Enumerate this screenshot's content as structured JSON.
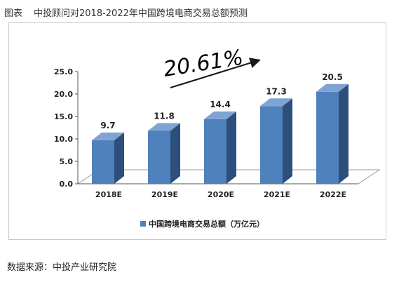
{
  "header": {
    "label": "图表",
    "title": "中投顾问对2018-2022年中国跨境电商交易总额预测"
  },
  "footer": {
    "source": "数据来源：中投产业研究院"
  },
  "chart_data": {
    "type": "bar",
    "categories": [
      "2018E",
      "2019E",
      "2020E",
      "2021E",
      "2022E"
    ],
    "series": [
      {
        "name": "中国跨境电商交易总额（万亿元）",
        "values": [
          9.7,
          11.8,
          14.4,
          17.3,
          20.5
        ],
        "color": "#4f81bd"
      }
    ],
    "ylim": [
      0,
      25
    ],
    "yticks": [
      "0.0",
      "5.0",
      "10.0",
      "15.0",
      "20.0",
      "25.0"
    ],
    "data_labels": [
      "9.7",
      "11.8",
      "14.4",
      "17.3",
      "20.5"
    ],
    "annotation": "20.61%",
    "legend_position": "bottom",
    "grid": false,
    "style": "3d-bar"
  }
}
